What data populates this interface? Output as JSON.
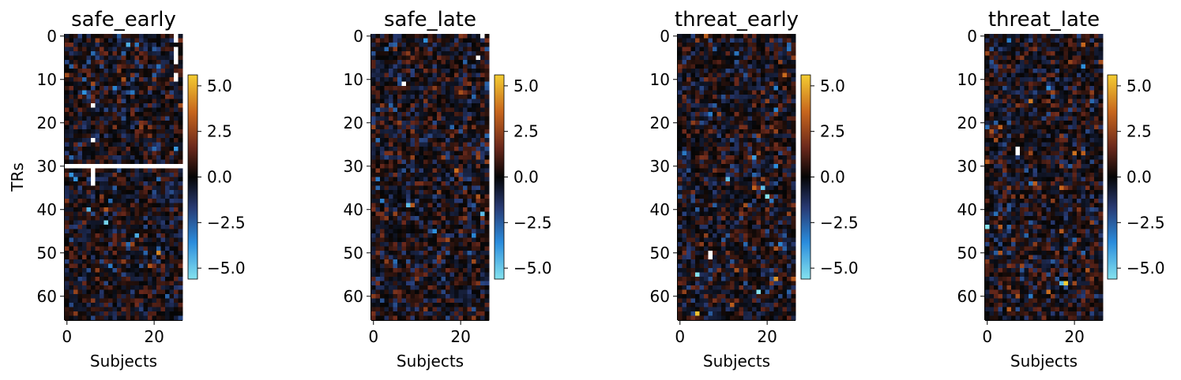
{
  "chart_data": [
    {
      "type": "heatmap",
      "title": "safe_early",
      "xlabel": "Subjects",
      "ylabel": "TRs",
      "n_subjects": 27,
      "n_trs": 66,
      "xticks": [
        0,
        20
      ],
      "yticks": [
        0,
        10,
        20,
        30,
        40,
        50,
        60
      ],
      "colorbar": {
        "range": [
          -5.6,
          5.6
        ],
        "ticks": [
          5.0,
          2.5,
          0.0,
          -2.5,
          -5.0
        ]
      },
      "missing_cells": [
        {
          "x": 25,
          "y_from": 0,
          "y_to": 1
        },
        {
          "x": 25,
          "y_from": 3,
          "y_to": 6
        },
        {
          "x": 25,
          "y_from": 9,
          "y_to": 10
        },
        {
          "x": 6,
          "y_from": 16,
          "y_to": 16
        },
        {
          "x": 6,
          "y_from": 24,
          "y_to": 24
        },
        {
          "x": 0,
          "x_to": 26,
          "y_from": 30,
          "y_to": 30
        },
        {
          "x": 6,
          "y_from": 30,
          "y_to": 34
        }
      ]
    },
    {
      "type": "heatmap",
      "title": "safe_late",
      "xlabel": "Subjects",
      "ylabel": "",
      "n_subjects": 27,
      "n_trs": 66,
      "xticks": [
        0,
        20
      ],
      "yticks": [
        0,
        10,
        20,
        30,
        40,
        50,
        60
      ],
      "colorbar": {
        "range": [
          -5.6,
          5.6
        ],
        "ticks": [
          5.0,
          2.5,
          0.0,
          -2.5,
          -5.0
        ]
      },
      "missing_cells": [
        {
          "x": 25,
          "y_from": 0,
          "y_to": 0
        },
        {
          "x": 24,
          "y_from": 5,
          "y_to": 5
        },
        {
          "x": 7,
          "y_from": 11,
          "y_to": 11
        }
      ]
    },
    {
      "type": "heatmap",
      "title": "threat_early",
      "xlabel": "Subjects",
      "ylabel": "",
      "n_subjects": 27,
      "n_trs": 66,
      "xticks": [
        0,
        20
      ],
      "yticks": [
        0,
        10,
        20,
        30,
        40,
        50,
        60
      ],
      "colorbar": {
        "range": [
          -5.6,
          5.6
        ],
        "ticks": [
          5.0,
          2.5,
          0.0,
          -2.5,
          -5.0
        ]
      },
      "missing_cells": [
        {
          "x": 7,
          "y_from": 50,
          "y_to": 51
        }
      ]
    },
    {
      "type": "heatmap",
      "title": "threat_late",
      "xlabel": "Subjects",
      "ylabel": "",
      "n_subjects": 27,
      "n_trs": 66,
      "xticks": [
        0,
        20
      ],
      "yticks": [
        0,
        10,
        20,
        30,
        40,
        50,
        60
      ],
      "colorbar": {
        "range": [
          -5.6,
          5.6
        ],
        "ticks": [
          5.0,
          2.5,
          0.0,
          -2.5,
          -5.0
        ]
      },
      "missing_cells": [
        {
          "x": 7,
          "y_from": 26,
          "y_to": 27
        }
      ]
    }
  ]
}
